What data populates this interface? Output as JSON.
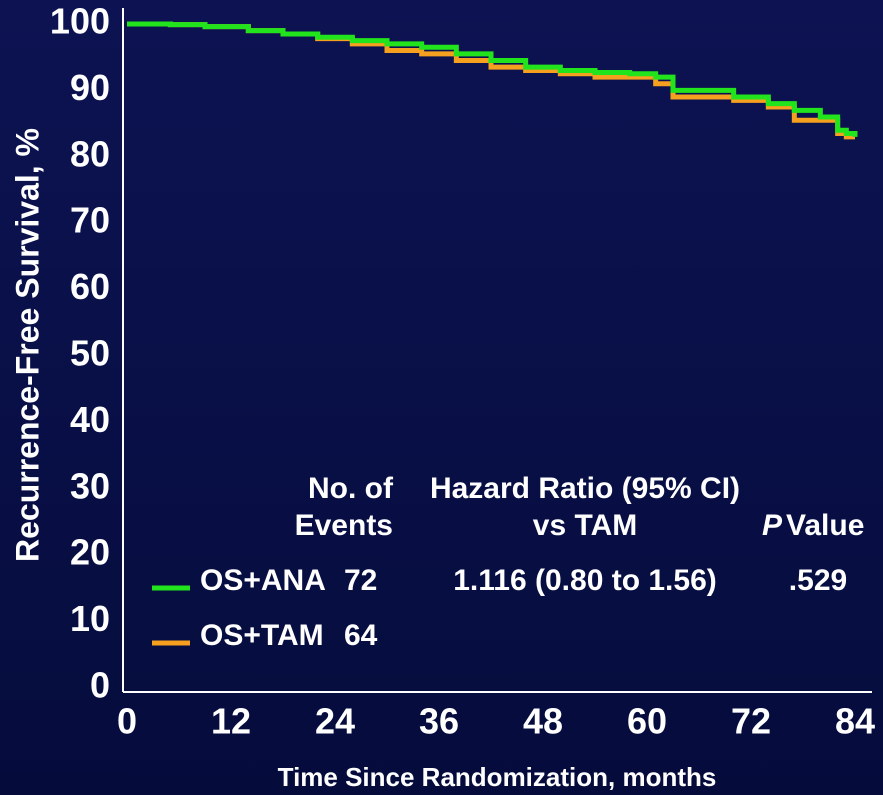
{
  "chart_data": {
    "type": "line",
    "step": "post",
    "y_label": "Recurrence-Free Survival, %",
    "x_label": "Time Since Randomization, months",
    "x": [
      0,
      5,
      9,
      14,
      18,
      22,
      26,
      30,
      34,
      38,
      42,
      46,
      50,
      54,
      58,
      61,
      63,
      66,
      70,
      74,
      77,
      80,
      82,
      83,
      84
    ],
    "series": [
      {
        "name": "OS+ANA",
        "color": "#22e41c",
        "events": 72,
        "hazard_ratio": "1.116 (0.80 to 1.56)",
        "p_value": ".529",
        "values": [
          100,
          99.9,
          99.6,
          99,
          98.5,
          98,
          97.5,
          97,
          96.5,
          95.5,
          94.5,
          93.5,
          93,
          92.7,
          92.5,
          92,
          90,
          90,
          89,
          88,
          87,
          86,
          84,
          83.5,
          83
        ]
      },
      {
        "name": "OS+TAM",
        "color": "#f5a01e",
        "events": 64,
        "values": [
          100,
          99.9,
          99.6,
          99,
          98.5,
          97.8,
          97,
          96,
          95.5,
          94.5,
          93.5,
          93,
          92.5,
          92,
          92,
          91,
          89,
          89,
          88.5,
          87.5,
          85.5,
          85.5,
          83.5,
          83,
          83
        ]
      }
    ],
    "table_headers": {
      "events": [
        "No. of",
        "Events"
      ],
      "hazard": [
        "Hazard Ratio (95% CI)",
        "vs TAM"
      ],
      "p_italic": "P",
      "p_rest": "Value"
    },
    "xlim": [
      0,
      84
    ],
    "xticks": [
      0,
      12,
      24,
      36,
      48,
      60,
      72,
      84
    ],
    "ylim": [
      0,
      100
    ],
    "yticks": [
      0,
      10,
      20,
      30,
      40,
      50,
      60,
      70,
      80,
      90,
      100
    ],
    "grid": false
  }
}
